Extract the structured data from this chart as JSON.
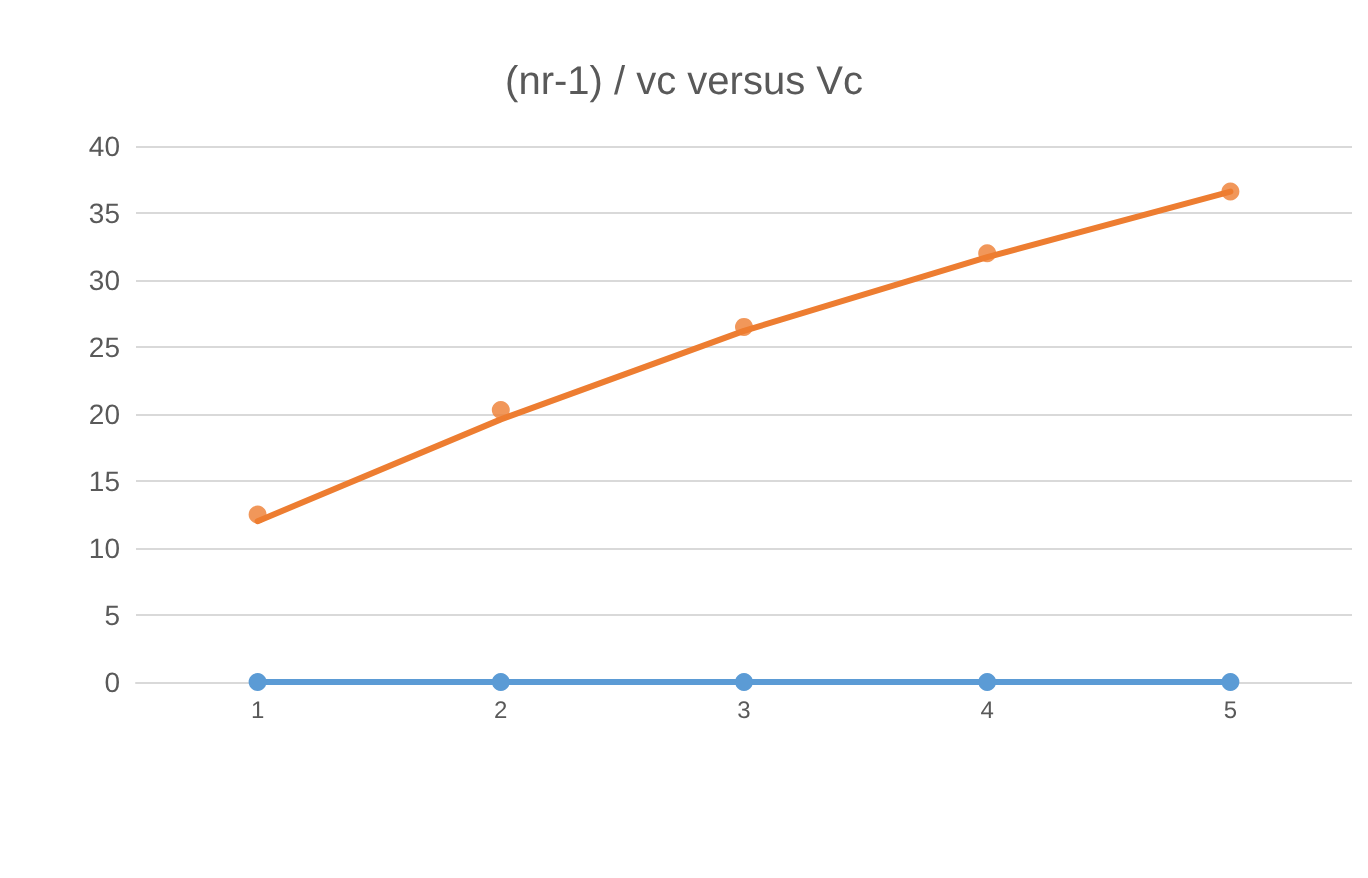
{
  "chart_data": {
    "type": "line",
    "title": "(nr-1) / vc versus Vc",
    "categories": [
      "1",
      "2",
      "3",
      "4",
      "5"
    ],
    "series": [
      {
        "color": "#5b9bd5",
        "values": [
          0,
          0,
          0,
          0,
          0
        ],
        "marker": "circle"
      },
      {
        "type": "scatter",
        "color": "#ed7d31",
        "values": [
          12.5,
          20.3,
          26.5,
          32,
          36.6
        ],
        "marker": "circle"
      },
      {
        "color": "#ed7d31",
        "values": [
          12,
          19.6,
          26.2,
          31.7,
          36.6
        ],
        "marker": "none"
      }
    ],
    "ylim": [
      0,
      40
    ],
    "yticks": [
      0,
      5,
      10,
      15,
      20,
      25,
      30,
      35,
      40
    ],
    "grid": "y"
  }
}
